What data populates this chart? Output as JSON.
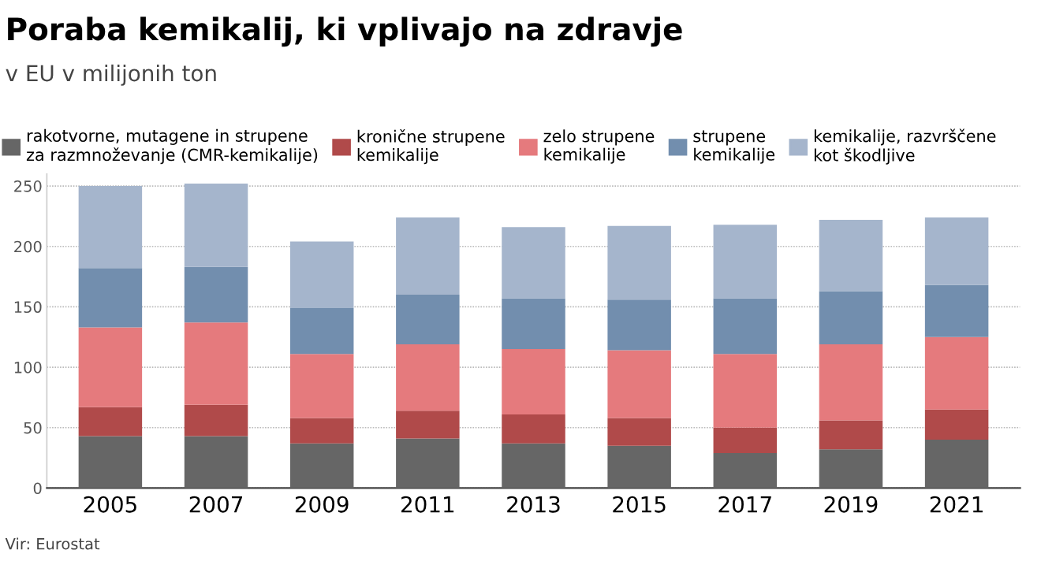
{
  "chart_data": {
    "type": "bar",
    "stacked": true,
    "title": "Poraba kemikalij, ki vplivajo na zdravje",
    "subtitle": "v EU v milijonih ton",
    "categories": [
      "2005",
      "2007",
      "2009",
      "2011",
      "2013",
      "2015",
      "2017",
      "2019",
      "2021"
    ],
    "series": [
      {
        "name": "rakotvorne, mutagene in strupene\nza razmnoževanje (CMR-kemikalije)",
        "color": "#666666",
        "values": [
          43,
          43,
          37,
          41,
          37,
          35,
          29,
          32,
          40
        ]
      },
      {
        "name": "kronične strupene\nkemikalije",
        "color": "#b04a4a",
        "values": [
          24,
          26,
          21,
          23,
          24,
          23,
          21,
          24,
          25
        ]
      },
      {
        "name": "zelo strupene\nkemikalije",
        "color": "#e57a7d",
        "values": [
          66,
          68,
          53,
          55,
          54,
          56,
          61,
          63,
          60
        ]
      },
      {
        "name": "strupene\nkemikalije",
        "color": "#728eae",
        "values": [
          49,
          46,
          38,
          41,
          42,
          42,
          46,
          44,
          43
        ]
      },
      {
        "name": "kemikalije, razvrščene\nkot škodljive",
        "color": "#a5b5cc",
        "values": [
          68,
          69,
          55,
          64,
          59,
          61,
          61,
          59,
          56
        ]
      }
    ],
    "ylim": [
      0,
      260
    ],
    "yticks": [
      0,
      50,
      100,
      150,
      200,
      250
    ],
    "grid": "y",
    "legend": "top",
    "annotations": [
      "Vir: Eurostat"
    ]
  }
}
